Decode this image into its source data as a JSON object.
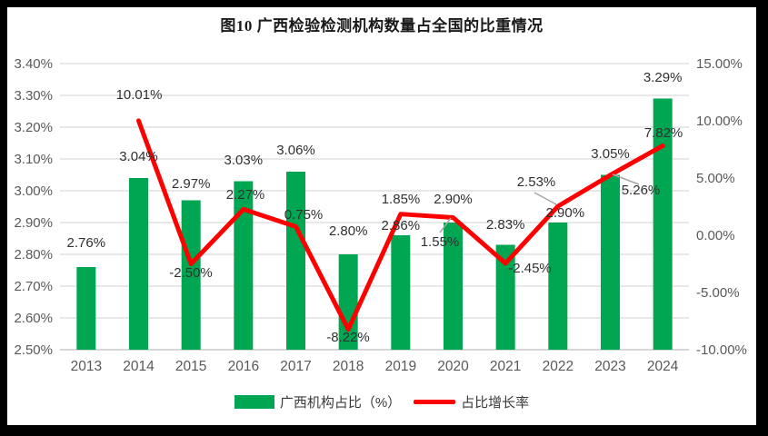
{
  "title": "图10 广西检验检测机构数量占全国的比重情况",
  "legend": {
    "items": [
      {
        "label": "广西机构占比（%）",
        "swatch": "bar",
        "color": "#00A651"
      },
      {
        "label": "占比增长率",
        "swatch": "line",
        "color": "#FF0000"
      }
    ]
  },
  "chart_data": {
    "type": "bar",
    "subtype": "combo-bar-line-dual-axis",
    "title": "图10 广西检验检测机构数量占全国的比重情况",
    "categories": [
      "2013",
      "2014",
      "2015",
      "2016",
      "2017",
      "2018",
      "2019",
      "2020",
      "2021",
      "2022",
      "2023",
      "2024"
    ],
    "series": [
      {
        "name": "广西机构占比（%）",
        "type": "bar",
        "axis": "left",
        "color": "#00A651",
        "values": [
          2.76,
          3.04,
          2.97,
          3.03,
          3.06,
          2.8,
          2.86,
          2.9,
          2.83,
          2.9,
          3.05,
          3.29
        ],
        "labels": [
          "2.76%",
          "3.04%",
          "2.97%",
          "3.03%",
          "3.06%",
          "2.80%",
          "2.86%",
          "2.90%",
          "2.83%",
          "2.90%",
          "3.05%",
          "3.29%"
        ]
      },
      {
        "name": "占比增长率",
        "type": "line",
        "axis": "right",
        "color": "#FF0000",
        "values": [
          null,
          10.01,
          -2.5,
          2.27,
          0.75,
          -8.22,
          1.85,
          1.55,
          -2.45,
          2.53,
          5.26,
          7.82
        ],
        "labels": [
          null,
          "10.01%",
          "-2.50%",
          "2.27%",
          "0.75%",
          "-8.22%",
          "1.85%",
          "1.55%",
          "-2.45%",
          "2.53%",
          "5.26%",
          "7.82%"
        ]
      }
    ],
    "left_axis": {
      "min": 2.5,
      "max": 3.4,
      "tick_step": 0.1,
      "tick_labels": [
        "3.40%",
        "3.30%",
        "3.20%",
        "3.10%",
        "3.00%",
        "2.90%",
        "2.80%",
        "2.70%",
        "2.60%",
        "2.50%"
      ]
    },
    "right_axis": {
      "min": -10,
      "max": 15,
      "tick_step": 5,
      "tick_labels": [
        "15.00%",
        "10.00%",
        "5.00%",
        "0.00%",
        "-5.00%",
        "-10.00%"
      ]
    },
    "grid": true,
    "legend_position": "bottom",
    "legend_entries": [
      "广西机构占比（%）",
      "占比增长率"
    ]
  },
  "colors": {
    "bar": "#00A651",
    "line": "#FF0000",
    "grid": "#D9D9D9",
    "baseline": "#BFBFBF",
    "axis_text": "#595959",
    "label_text": "#303030",
    "leader": "#A6A6A6",
    "frame": "#000000",
    "background": "#FFFFFF"
  }
}
